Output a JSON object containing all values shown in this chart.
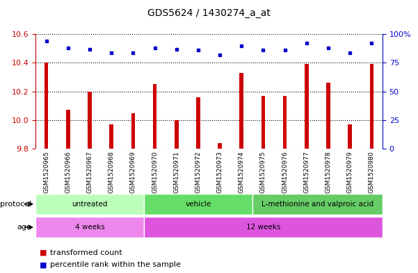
{
  "title": "GDS5624 / 1430274_a_at",
  "categories": [
    "GSM1520965",
    "GSM1520966",
    "GSM1520967",
    "GSM1520968",
    "GSM1520969",
    "GSM1520970",
    "GSM1520971",
    "GSM1520972",
    "GSM1520973",
    "GSM1520974",
    "GSM1520975",
    "GSM1520976",
    "GSM1520977",
    "GSM1520978",
    "GSM1520979",
    "GSM1520980"
  ],
  "bar_values": [
    10.4,
    10.07,
    10.2,
    9.97,
    10.05,
    10.25,
    10.0,
    10.16,
    9.84,
    10.33,
    10.17,
    10.17,
    10.39,
    10.26,
    9.97,
    10.39
  ],
  "blue_dots_pct": [
    94,
    88,
    87,
    84,
    84,
    88,
    87,
    86,
    82,
    90,
    86,
    86,
    92,
    88,
    84,
    92
  ],
  "ymin": 9.8,
  "ymax": 10.6,
  "yticks": [
    9.8,
    10.0,
    10.2,
    10.4,
    10.6
  ],
  "right_yticks": [
    0,
    25,
    50,
    75,
    100
  ],
  "bar_color": "#cc0000",
  "dot_color": "#0000cc",
  "protocol_groups": [
    {
      "label": "untreated",
      "start": 0,
      "end": 4,
      "color": "#bbffbb"
    },
    {
      "label": "vehicle",
      "start": 5,
      "end": 9,
      "color": "#66dd66"
    },
    {
      "label": "L-methionine and valproic acid",
      "start": 10,
      "end": 15,
      "color": "#66cc66"
    }
  ],
  "age_groups": [
    {
      "label": "4 weeks",
      "start": 0,
      "end": 4,
      "color": "#ee88ee"
    },
    {
      "label": "12 weeks",
      "start": 5,
      "end": 15,
      "color": "#dd55dd"
    }
  ],
  "legend_items": [
    {
      "label": "transformed count",
      "color": "#cc0000"
    },
    {
      "label": "percentile rank within the sample",
      "color": "#0000cc"
    }
  ],
  "protocol_label": "protocol",
  "age_label": "age",
  "background_color": "#ffffff",
  "left_tick_color": "#cc0000",
  "right_tick_color": "#0000cc",
  "xlabel_bg": "#cccccc"
}
